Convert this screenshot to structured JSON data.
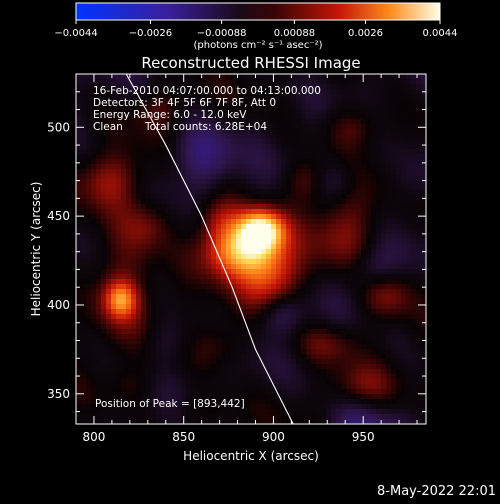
{
  "colorbar": {
    "ticks": [
      -0.0044,
      -0.0026,
      -0.00088,
      0.00088,
      0.0026,
      0.0044
    ],
    "tick_labels": [
      "−0.0044",
      "−0.0026",
      "−0.00088",
      "0.00088",
      "0.0026",
      "0.0044"
    ],
    "unit_label": "(photons cm⁻² s⁻¹ asec⁻²)",
    "range": [
      -0.0044,
      0.0044
    ]
  },
  "annotations": {
    "time": "16-Feb-2010 04:07:00.000 to 04:13:00.000",
    "detectors": "Detectors: 3F 4F 5F 6F 7F 8F, Att 0",
    "energy": "Energy Range: 6.0 - 12.0 keV",
    "clean": "Clean",
    "counts": "Total counts: 6.28E+04",
    "peak": "Position of Peak = [893,442]"
  },
  "footer": {
    "timestamp": "8-May-2022 22:01"
  },
  "colors": {
    "limb": "#ffffff",
    "axes": "#ffffff",
    "background": "#000000"
  },
  "chart_data": {
    "type": "heatmap",
    "title": "Reconstructed RHESSI Image",
    "xlabel": "Heliocentric X (arcsec)",
    "ylabel": "Heliocentric Y (arcsec)",
    "xlim": [
      790,
      985
    ],
    "ylim": [
      333,
      530
    ],
    "xticks": [
      800,
      850,
      900,
      950
    ],
    "yticks": [
      350,
      400,
      450,
      500
    ],
    "colormap": "blue-purple-red-yellow-white",
    "value_range": [
      -0.0044,
      0.0044
    ],
    "peak_position": [
      893,
      442
    ],
    "grid": false,
    "limb_curve": [
      [
        818,
        530
      ],
      [
        840,
        490
      ],
      [
        860,
        450
      ],
      [
        877,
        410
      ],
      [
        890,
        375
      ],
      [
        911,
        333
      ]
    ],
    "sources": [
      {
        "x": 893,
        "y": 442,
        "value": 0.0044,
        "sx": 9,
        "sy": 8
      },
      {
        "x": 880,
        "y": 430,
        "value": 0.003,
        "sx": 13,
        "sy": 10
      },
      {
        "x": 898,
        "y": 418,
        "value": 0.0024,
        "sx": 12,
        "sy": 14
      },
      {
        "x": 870,
        "y": 448,
        "value": 0.0016,
        "sx": 9,
        "sy": 10
      },
      {
        "x": 815,
        "y": 403,
        "value": 0.0024,
        "sx": 6,
        "sy": 7
      },
      {
        "x": 815,
        "y": 415,
        "value": 0.0012,
        "sx": 14,
        "sy": 22
      },
      {
        "x": 810,
        "y": 470,
        "value": 0.0013,
        "sx": 12,
        "sy": 11
      },
      {
        "x": 830,
        "y": 445,
        "value": 0.001,
        "sx": 10,
        "sy": 10
      },
      {
        "x": 940,
        "y": 440,
        "value": 0.0012,
        "sx": 12,
        "sy": 16
      },
      {
        "x": 963,
        "y": 405,
        "value": 0.0013,
        "sx": 10,
        "sy": 10
      },
      {
        "x": 945,
        "y": 500,
        "value": 0.0011,
        "sx": 12,
        "sy": 9
      },
      {
        "x": 918,
        "y": 470,
        "value": 0.001,
        "sx": 8,
        "sy": 9
      },
      {
        "x": 930,
        "y": 378,
        "value": 0.0009,
        "sx": 13,
        "sy": 8
      },
      {
        "x": 870,
        "y": 378,
        "value": 0.0009,
        "sx": 11,
        "sy": 10
      },
      {
        "x": 950,
        "y": 355,
        "value": 0.0008,
        "sx": 12,
        "sy": 8
      },
      {
        "x": 820,
        "y": 355,
        "value": 0.0006,
        "sx": 10,
        "sy": 8
      },
      {
        "x": 835,
        "y": 510,
        "value": 0.0008,
        "sx": 10,
        "sy": 8
      },
      {
        "x": 860,
        "y": 340,
        "value": 0.0006,
        "sx": 14,
        "sy": 7
      },
      {
        "x": 860,
        "y": 485,
        "value": -0.0014,
        "sx": 12,
        "sy": 12
      },
      {
        "x": 905,
        "y": 395,
        "value": -0.001,
        "sx": 9,
        "sy": 8
      },
      {
        "x": 955,
        "y": 420,
        "value": -0.0009,
        "sx": 9,
        "sy": 9
      },
      {
        "x": 950,
        "y": 330,
        "value": -0.0012,
        "sx": 14,
        "sy": 10
      },
      {
        "x": 935,
        "y": 470,
        "value": -0.0007,
        "sx": 8,
        "sy": 8
      },
      {
        "x": 840,
        "y": 380,
        "value": -0.0006,
        "sx": 10,
        "sy": 9
      },
      {
        "x": 975,
        "y": 470,
        "value": -0.0006,
        "sx": 8,
        "sy": 12
      }
    ]
  }
}
